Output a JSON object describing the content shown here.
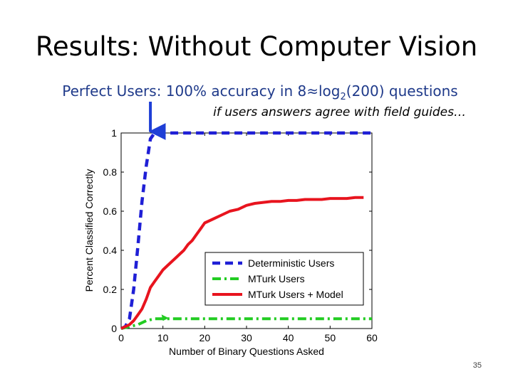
{
  "slide": {
    "title": "Results: Without Computer Vision",
    "subtitle_prefix": "Perfect Users: 100% accuracy in 8≈log",
    "subtitle_sub": "2",
    "subtitle_suffix": "(200) questions",
    "note": "if users answers agree with field guides…",
    "page_number": "35"
  },
  "chart_data": {
    "type": "line",
    "xlabel": "Number of Binary Questions Asked",
    "ylabel": "Percent Classified Correctly",
    "xlim": [
      0,
      60
    ],
    "ylim": [
      0,
      1
    ],
    "xticks": [
      0,
      10,
      20,
      30,
      40,
      50,
      60
    ],
    "yticks": [
      0,
      0.2,
      0.4,
      0.6,
      0.8,
      1
    ],
    "ytick_labels": [
      "0",
      "0.2",
      "0.4",
      "0.6",
      "0.8",
      "1"
    ],
    "legend_position": "bottom-right",
    "series": [
      {
        "name": "Deterministic Users",
        "color": "#1f1fd6",
        "style": "dashed",
        "x": [
          0,
          1,
          2,
          3,
          4,
          5,
          6,
          7,
          8,
          10,
          20,
          30,
          40,
          50,
          60
        ],
        "y": [
          0,
          0.01,
          0.05,
          0.2,
          0.42,
          0.65,
          0.83,
          0.97,
          1.0,
          1.0,
          1.0,
          1.0,
          1.0,
          1.0,
          1.0
        ]
      },
      {
        "name": "MTurk Users",
        "color": "#22cc22",
        "style": "dashdot",
        "x": [
          0,
          2,
          4,
          6,
          8,
          10,
          20,
          30,
          40,
          50,
          60
        ],
        "y": [
          0,
          0.01,
          0.02,
          0.04,
          0.05,
          0.05,
          0.05,
          0.05,
          0.05,
          0.05,
          0.05
        ],
        "arrowhead_at": 5
      },
      {
        "name": "MTurk Users + Model",
        "color": "#e8141e",
        "style": "solid",
        "x": [
          0,
          1,
          2,
          3,
          4,
          5,
          6,
          7,
          8,
          9,
          10,
          11,
          12,
          13,
          14,
          15,
          16,
          17,
          18,
          19,
          20,
          22,
          24,
          26,
          28,
          30,
          32,
          34,
          36,
          38,
          40,
          42,
          44,
          46,
          48,
          50,
          52,
          54,
          56,
          58
        ],
        "y": [
          0,
          0.01,
          0.02,
          0.04,
          0.07,
          0.1,
          0.15,
          0.21,
          0.24,
          0.27,
          0.3,
          0.32,
          0.34,
          0.36,
          0.38,
          0.4,
          0.43,
          0.45,
          0.48,
          0.51,
          0.54,
          0.56,
          0.58,
          0.6,
          0.61,
          0.63,
          0.64,
          0.645,
          0.65,
          0.65,
          0.655,
          0.655,
          0.66,
          0.66,
          0.66,
          0.665,
          0.665,
          0.665,
          0.67,
          0.67
        ]
      }
    ],
    "annotation_arrow_x": 7
  }
}
